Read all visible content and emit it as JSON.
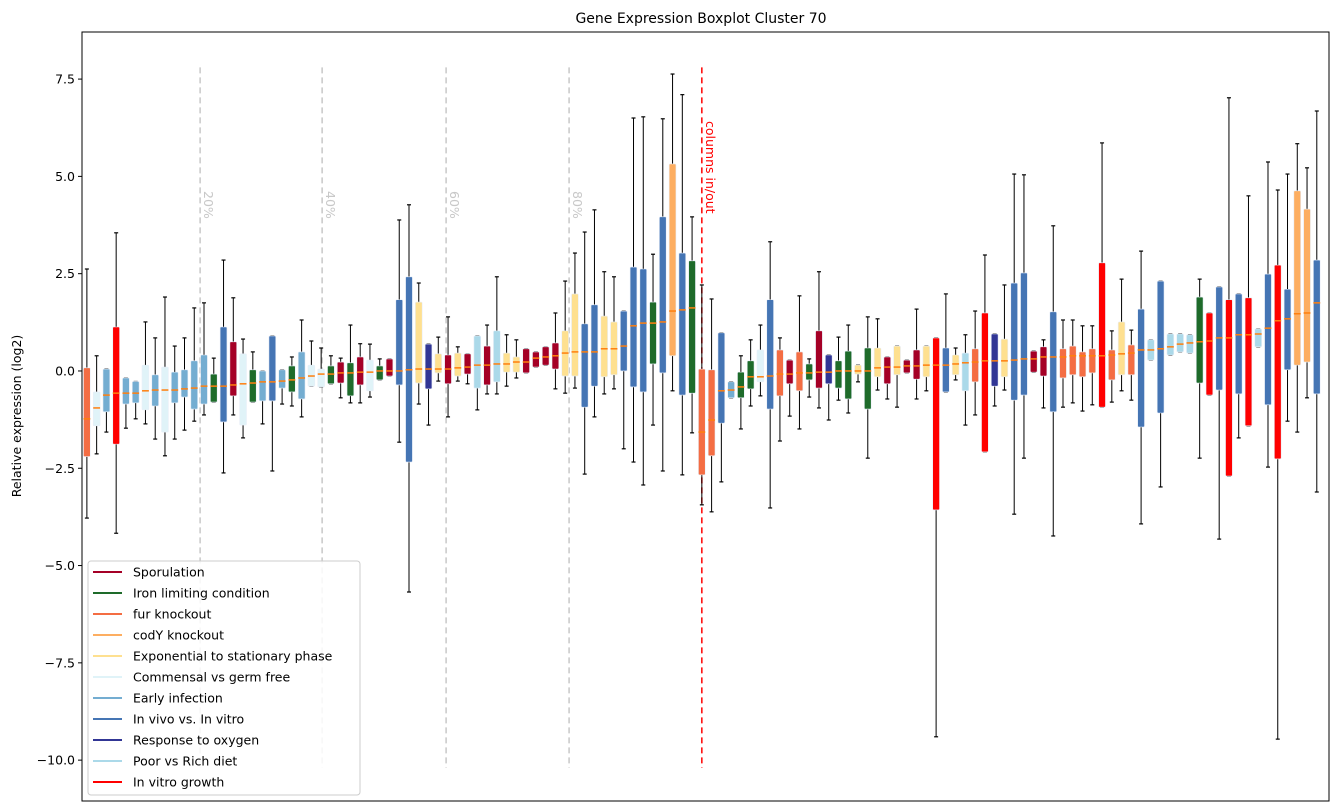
{
  "chart_data": {
    "type": "boxplot",
    "title": "Gene Expression Boxplot Cluster 70",
    "xlabel": "",
    "ylabel": "Relative expression (log2)",
    "ylim": [
      -11.05,
      8.71
    ],
    "xlim": [
      0.5,
      128.25
    ],
    "yticks": [
      7.5,
      5.0,
      2.5,
      0.0,
      -2.5,
      -5.0,
      -7.5,
      -10.0
    ],
    "ytick_labels": [
      "7.5",
      "5.0",
      "2.5",
      "0.0",
      "−2.5",
      "−5.0",
      "−7.5",
      "−10.0"
    ],
    "grid": false,
    "legend_placement": "lower-left",
    "categories": [
      {
        "key": "S",
        "name": "Sporulation",
        "color": "#a50026"
      },
      {
        "key": "I",
        "name": "Iron limiting condition",
        "color": "#1e6b2a"
      },
      {
        "key": "F",
        "name": "fur knockout",
        "color": "#f46d43"
      },
      {
        "key": "C",
        "name": "codY knockout",
        "color": "#fdae61"
      },
      {
        "key": "E",
        "name": "Exponential to stationary phase",
        "color": "#fee090"
      },
      {
        "key": "M",
        "name": "Commensal vs germ free",
        "color": "#e0f3f8"
      },
      {
        "key": "EI",
        "name": "Early infection",
        "color": "#74add1"
      },
      {
        "key": "V",
        "name": "In vivo vs. In vitro",
        "color": "#4575b4"
      },
      {
        "key": "O",
        "name": "Response to oxygen",
        "color": "#313695"
      },
      {
        "key": "P",
        "name": "Poor vs Rich diet",
        "color": "#abd9e9"
      },
      {
        "key": "R",
        "name": "In vitro growth",
        "color": "#ff0000"
      }
    ],
    "median_color": "#ff7f0e",
    "box_fields": [
      "category",
      "whisker_low",
      "q1",
      "median",
      "q3",
      "whisker_high"
    ],
    "boxes": [
      [
        "F",
        -3.78,
        -2.2,
        -1.23,
        0.08,
        2.62
      ],
      [
        "M",
        -2.13,
        -1.41,
        -0.95,
        -0.54,
        0.39
      ],
      [
        "EI",
        -1.57,
        -1.05,
        -0.62,
        0.05,
        0.05
      ],
      [
        "R",
        -4.17,
        -1.88,
        -0.57,
        1.13,
        3.55
      ],
      [
        "EI",
        -1.47,
        -0.85,
        -0.57,
        -0.18,
        -0.18
      ],
      [
        "EI",
        -1.23,
        -0.82,
        -0.57,
        -0.27,
        -0.27
      ],
      [
        "M",
        -1.36,
        -1.0,
        -0.51,
        0.15,
        1.26
      ],
      [
        "EI",
        -1.75,
        -0.9,
        -0.49,
        -0.1,
        0.85
      ],
      [
        "M",
        -2.18,
        -1.57,
        -0.49,
        0.1,
        1.9
      ],
      [
        "EI",
        -1.75,
        -0.82,
        -0.49,
        -0.03,
        0.64
      ],
      [
        "EI",
        -1.52,
        -0.67,
        -0.46,
        0.03,
        0.85
      ],
      [
        "EI",
        -1.29,
        -0.98,
        -0.44,
        0.26,
        1.62
      ],
      [
        "EI",
        -1.13,
        -0.85,
        -0.39,
        0.41,
        1.75
      ],
      [
        "I",
        -0.8,
        -0.8,
        -0.39,
        -0.08,
        0.33
      ],
      [
        "V",
        -2.62,
        -1.31,
        -0.39,
        1.13,
        2.85
      ],
      [
        "S",
        -1.13,
        -0.64,
        -0.36,
        0.75,
        1.88
      ],
      [
        "M",
        -1.72,
        -1.39,
        -0.33,
        0.44,
        0.82
      ],
      [
        "I",
        -0.8,
        -0.8,
        -0.31,
        0.03,
        0.49
      ],
      [
        "EI",
        -1.36,
        -0.77,
        -0.28,
        0,
        0
      ],
      [
        "V",
        -2.57,
        -0.77,
        -0.28,
        0.9,
        0.9
      ],
      [
        "EI",
        -0.85,
        -0.44,
        -0.26,
        0.03,
        0.03
      ],
      [
        "I",
        -0.9,
        -0.54,
        -0.23,
        0.13,
        0.36
      ],
      [
        "EI",
        -1.18,
        -0.72,
        -0.18,
        0.49,
        1.31
      ],
      [
        "M",
        -0.39,
        -0.39,
        -0.13,
        0.15,
        0.77
      ],
      [
        "M",
        -0.41,
        -0.41,
        -0.08,
        0.05,
        0.59
      ],
      [
        "I",
        -0.33,
        -0.33,
        -0.08,
        0.13,
        0.39
      ],
      [
        "S",
        -0.69,
        -0.31,
        -0.05,
        0.23,
        0.33
      ],
      [
        "I",
        -0.82,
        -0.64,
        -0.05,
        0.21,
        1.18
      ],
      [
        "S",
        -0.82,
        -0.36,
        -0.03,
        0.36,
        0.7
      ],
      [
        "M",
        -0.67,
        -0.51,
        -0.03,
        0.28,
        0.69
      ],
      [
        "I",
        -0.23,
        -0.23,
        0,
        0.13,
        0.31
      ],
      [
        "S",
        -0.13,
        -0.13,
        0,
        0.31,
        0.31
      ],
      [
        "V",
        -1.83,
        -0.36,
        0,
        1.83,
        3.88
      ],
      [
        "V",
        -5.68,
        -2.34,
        0.03,
        2.42,
        4.27
      ],
      [
        "E",
        -0.85,
        -0.31,
        0.05,
        1.77,
        2.26
      ],
      [
        "O",
        -1.39,
        -0.46,
        0.05,
        0.69,
        0.69
      ],
      [
        "E",
        -0.26,
        -0.05,
        0.05,
        0.44,
        0.87
      ],
      [
        "S",
        -1.18,
        -0.33,
        0.05,
        0.41,
        1.39
      ],
      [
        "E",
        -0.26,
        -0.13,
        0.08,
        0.46,
        0.62
      ],
      [
        "S",
        -0.33,
        -0.08,
        0.1,
        0.44,
        0.44
      ],
      [
        "P",
        -1.0,
        -0.44,
        0.15,
        0.9,
        0.9
      ],
      [
        "S",
        -0.59,
        -0.36,
        0.15,
        0.64,
        1.18
      ],
      [
        "P",
        -0.59,
        -0.28,
        0.18,
        1.03,
        2.42
      ],
      [
        "E",
        -0.39,
        -0.03,
        0.18,
        0.46,
        0.93
      ],
      [
        "E",
        -0.18,
        -0.03,
        0.23,
        0.36,
        0.8
      ],
      [
        "S",
        -0.05,
        -0.05,
        0.23,
        0.57,
        0.57
      ],
      [
        "S",
        0.1,
        0.1,
        0.33,
        0.49,
        0.49
      ],
      [
        "S",
        0.15,
        0.15,
        0.36,
        0.62,
        0.62
      ],
      [
        "S",
        -0.46,
        0.05,
        0.39,
        0.72,
        1.49
      ],
      [
        "E",
        -0.57,
        -0.13,
        0.46,
        1.03,
        2.31
      ],
      [
        "E",
        -0.44,
        -0.13,
        0.49,
        1.98,
        3.03
      ],
      [
        "V",
        -2.65,
        -0.93,
        0.49,
        1.21,
        3.57
      ],
      [
        "V",
        -1.18,
        -0.39,
        0.49,
        1.7,
        4.14
      ],
      [
        "E",
        -0.59,
        -0.15,
        0.57,
        1.41,
        2.55
      ],
      [
        "E",
        -0.46,
        -0.1,
        0.57,
        1.26,
        2.42
      ],
      [
        "V",
        -2.0,
        0,
        0.64,
        1.54,
        1.54
      ],
      [
        "V",
        -2.34,
        -0.41,
        1.16,
        2.67,
        6.5
      ],
      [
        "V",
        -2.93,
        -0.54,
        1.23,
        2.62,
        6.53
      ],
      [
        "I",
        -1.39,
        0.18,
        1.23,
        1.77,
        3.0
      ],
      [
        "V",
        -2.57,
        -0.05,
        1.26,
        3.96,
        6.48
      ],
      [
        "C",
        -0.51,
        0.39,
        1.54,
        5.32,
        7.63
      ],
      [
        "V",
        -2.67,
        -0.62,
        1.57,
        3.03,
        7.1
      ],
      [
        "I",
        -1.59,
        -0.57,
        1.62,
        2.83,
        3.96
      ],
      [
        "F",
        -3.44,
        -2.67,
        -1.57,
        0.05,
        2.21
      ],
      [
        "F",
        -3.62,
        -2.18,
        -1.26,
        0.03,
        1.85
      ],
      [
        "V",
        -2.85,
        -1.34,
        -0.51,
        0.98,
        0.98
      ],
      [
        "EI",
        -0.69,
        -0.69,
        -0.49,
        -0.28,
        -0.28
      ],
      [
        "I",
        -1.49,
        -0.69,
        -0.41,
        -0.03,
        0.39
      ],
      [
        "I",
        -0.9,
        -0.46,
        -0.15,
        0.26,
        0.8
      ],
      [
        "M",
        -0.64,
        -0.28,
        -0.15,
        0.54,
        1.18
      ],
      [
        "V",
        -3.52,
        -0.98,
        -0.13,
        1.83,
        3.32
      ],
      [
        "F",
        -1.8,
        -0.64,
        -0.08,
        0.54,
        0.85
      ],
      [
        "S",
        -1.16,
        -0.33,
        -0.08,
        0.28,
        0.28
      ],
      [
        "F",
        -1.49,
        -0.51,
        -0.05,
        0.49,
        1.93
      ],
      [
        "I",
        -0.67,
        -0.23,
        -0.05,
        0.18,
        0.31
      ],
      [
        "S",
        -0.95,
        -0.44,
        -0.03,
        1.03,
        2.55
      ],
      [
        "O",
        -1.26,
        -0.33,
        -0.03,
        0.41,
        0.41
      ],
      [
        "I",
        -0.75,
        -0.44,
        0,
        0.26,
        0.87
      ],
      [
        "I",
        -1.08,
        -0.72,
        0,
        0.51,
        1.18
      ],
      [
        "E",
        -0.28,
        -0.08,
        0,
        0.15,
        0.15
      ],
      [
        "I",
        -2.24,
        -0.98,
        0,
        0.59,
        1.39
      ],
      [
        "E",
        -0.49,
        -0.15,
        0.08,
        0.59,
        1.34
      ],
      [
        "S",
        -0.72,
        -0.33,
        0.1,
        0.36,
        0.36
      ],
      [
        "E",
        -0.93,
        -0.1,
        0.1,
        0.64,
        0.64
      ],
      [
        "S",
        -0.05,
        -0.05,
        0.13,
        0.28,
        0.28
      ],
      [
        "S",
        -0.72,
        -0.21,
        0.13,
        0.54,
        1.59
      ],
      [
        "E",
        -0.51,
        -0.15,
        0.15,
        0.64,
        0.64
      ],
      [
        "R",
        -9.4,
        -3.57,
        0.15,
        0.85,
        0.85
      ],
      [
        "V",
        -0.54,
        -0.54,
        0.15,
        0.59,
        1.98
      ],
      [
        "E",
        -0.23,
        -0.1,
        0.18,
        0.41,
        0.59
      ],
      [
        "P",
        -1.39,
        -0.51,
        0.21,
        0.46,
        0.93
      ],
      [
        "F",
        -1.13,
        -0.28,
        0.23,
        0.57,
        1.54
      ],
      [
        "R",
        -2.08,
        -2.08,
        0.26,
        1.49,
        2.98
      ],
      [
        "O",
        -0.9,
        -0.39,
        0.26,
        0.95,
        0.95
      ],
      [
        "E",
        -0.49,
        -0.15,
        0.26,
        0.82,
        2.21
      ],
      [
        "V",
        -3.68,
        -0.75,
        0.28,
        2.26,
        5.06
      ],
      [
        "V",
        -2.24,
        -0.62,
        0.31,
        2.52,
        5.04
      ],
      [
        "S",
        -0.03,
        -0.03,
        0.31,
        0.51,
        0.51
      ],
      [
        "S",
        -0.95,
        -0.13,
        0.36,
        0.62,
        0.8
      ],
      [
        "V",
        -4.24,
        -1.05,
        0.36,
        1.52,
        3.73
      ],
      [
        "F",
        -0.93,
        -0.18,
        0.36,
        0.57,
        1.31
      ],
      [
        "F",
        -0.82,
        -0.1,
        0.39,
        0.64,
        1.31
      ],
      [
        "F",
        -1.03,
        -0.15,
        0.39,
        0.49,
        1.16
      ],
      [
        "F",
        -0.87,
        -0.05,
        0.39,
        0.57,
        1.16
      ],
      [
        "R",
        -0.93,
        -0.93,
        0.39,
        2.78,
        5.86
      ],
      [
        "F",
        -0.8,
        -0.23,
        0.41,
        0.54,
        1.03
      ],
      [
        "E",
        -0.51,
        -0.1,
        0.44,
        1.26,
        2.36
      ],
      [
        "F",
        -0.75,
        -0.1,
        0.46,
        0.67,
        1.05
      ],
      [
        "V",
        -3.93,
        -1.44,
        0.54,
        1.59,
        3.08
      ],
      [
        "P",
        0.28,
        0.28,
        0.54,
        0.8,
        0.8
      ],
      [
        "V",
        -2.98,
        -1.08,
        0.57,
        2.31,
        2.31
      ],
      [
        "P",
        0.41,
        0.41,
        0.62,
        0.95,
        0.95
      ],
      [
        "P",
        0.49,
        0.49,
        0.69,
        0.95,
        0.95
      ],
      [
        "P",
        0.46,
        0.46,
        0.72,
        0.93,
        0.93
      ],
      [
        "I",
        -2.24,
        -0.31,
        0.75,
        1.9,
        2.36
      ],
      [
        "R",
        -0.62,
        -0.62,
        0.77,
        1.49,
        1.49
      ],
      [
        "V",
        -4.32,
        -0.49,
        0.85,
        2.16,
        2.16
      ],
      [
        "R",
        -2.7,
        -2.7,
        0.85,
        1.83,
        7.02
      ],
      [
        "V",
        -1.72,
        -0.59,
        0.93,
        1.98,
        1.98
      ],
      [
        "R",
        -1.41,
        -1.41,
        0.93,
        1.88,
        4.5
      ],
      [
        "P",
        0.62,
        0.62,
        0.95,
        1.08,
        1.08
      ],
      [
        "V",
        -2.47,
        -0.87,
        1.1,
        2.49,
        5.37
      ],
      [
        "R",
        -9.46,
        -2.26,
        1.29,
        2.72,
        4.65
      ],
      [
        "V",
        -1.29,
        0.03,
        1.34,
        2.1,
        5.06
      ],
      [
        "C",
        -1.57,
        0.15,
        1.47,
        4.63,
        5.84
      ],
      [
        "C",
        -0.69,
        0.23,
        1.49,
        4.16,
        5.22
      ],
      [
        "V",
        -3.11,
        -0.59,
        1.75,
        2.85,
        6.68
      ]
    ],
    "vlines": [
      {
        "position": 12.6,
        "label": "20%",
        "color": "#c8c8c8",
        "range": [
          -10.2,
          7.8
        ]
      },
      {
        "position": 25.1,
        "label": "40%",
        "color": "#c8c8c8",
        "range": [
          -10.2,
          7.8
        ]
      },
      {
        "position": 37.8,
        "label": "60%",
        "color": "#c8c8c8",
        "range": [
          -10.2,
          7.8
        ]
      },
      {
        "position": 50.4,
        "label": "80%",
        "color": "#c8c8c8",
        "range": [
          -10.2,
          7.8
        ]
      },
      {
        "position": 64.0,
        "label": "columns in/out",
        "color": "#ff0000",
        "range": [
          -10.2,
          7.8
        ]
      }
    ]
  }
}
